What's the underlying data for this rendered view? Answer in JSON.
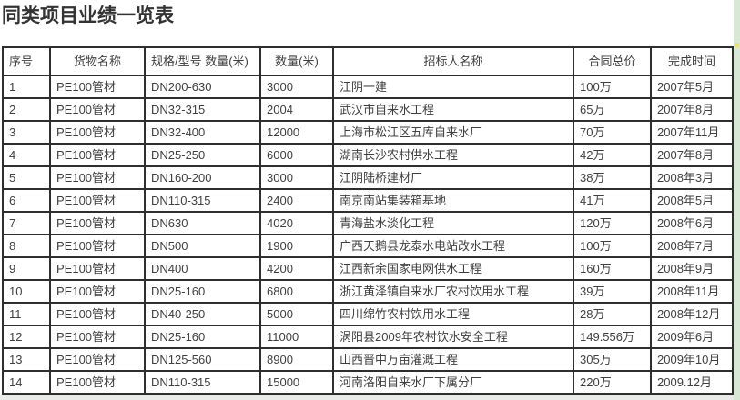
{
  "page": {
    "title": "同类项目业绩一览表"
  },
  "colors": {
    "title_text": "#333333",
    "table_border": "#2e2e2e",
    "cell_text": "#3f3f3f",
    "right_strip_green": "#d7e8d4",
    "right_strip_dot_yellow": "#f0e25a",
    "bottom_gap_gray": "#e9ebe9"
  },
  "table": {
    "headers": [
      "序号",
      "货物名称",
      "规格/型号 数量(米)",
      "数量(米)",
      "招标人名称",
      "合同总价",
      "完成时间"
    ],
    "keys": [
      "no",
      "goods",
      "spec",
      "qty",
      "bidder",
      "price",
      "time"
    ],
    "rows": [
      {
        "no": "1",
        "goods": "PE100管材",
        "spec": "DN200-630",
        "qty": "3000",
        "bidder": "江阴一建",
        "price": "100万",
        "time": "2007年5月"
      },
      {
        "no": "2",
        "goods": "PE100管材",
        "spec": "DN32-315",
        "qty": "2004",
        "bidder": "武汉市自来水工程",
        "price": "65万",
        "time": "2007年8月"
      },
      {
        "no": "3",
        "goods": "PE100管材",
        "spec": "DN32-400",
        "qty": "12000",
        "bidder": "上海市松江区五库自来水厂",
        "price": "70万",
        "time": "2007年11月"
      },
      {
        "no": "4",
        "goods": "PE100管材",
        "spec": "DN25-250",
        "qty": "6000",
        "bidder": "湖南长沙农村供水工程",
        "price": "42万",
        "time": "2007年8月"
      },
      {
        "no": "5",
        "goods": "PE100管材",
        "spec": "DN160-200",
        "qty": "3000",
        "bidder": "江阴陆桥建材厂",
        "price": "38万",
        "time": "2008年3月"
      },
      {
        "no": "6",
        "goods": "PE100管材",
        "spec": "DN110-315",
        "qty": "2400",
        "bidder": "南京南站集装箱基地",
        "price": "41万",
        "time": "2008年5月"
      },
      {
        "no": "7",
        "goods": "PE100管材",
        "spec": "DN630",
        "qty": "4020",
        "bidder": "青海盐水淡化工程",
        "price": "120万",
        "time": "2008年6月"
      },
      {
        "no": "8",
        "goods": "PE100管材",
        "spec": "DN500",
        "qty": "1900",
        "bidder": "广西天鹅县龙泰水电站改水工程",
        "price": "100万",
        "time": "2008年7月"
      },
      {
        "no": "9",
        "goods": "PE100管材",
        "spec": "DN400",
        "qty": "4200",
        "bidder": "江西新余国家电网供水工程",
        "price": "160万",
        "time": "2008年9月"
      },
      {
        "no": "10",
        "goods": "PE100管材",
        "spec": "DN25-160",
        "qty": "6800",
        "bidder": "浙江黄泽镇自来水厂农村饮用水工程",
        "price": "39万",
        "time": "2008年11月"
      },
      {
        "no": "11",
        "goods": "PE100管材",
        "spec": "DN40-250",
        "qty": "5000",
        "bidder": "四川绵竹农村饮用水工程",
        "price": "28万",
        "time": "2008年12月"
      },
      {
        "no": "12",
        "goods": "PE100管材",
        "spec": "DN25-160",
        "qty": "11000",
        "bidder": "涡阳县2009年农村饮水安全工程",
        "price": "149.556万",
        "time": "2009年6月"
      },
      {
        "no": "13",
        "goods": "PE100管材",
        "spec": "DN125-560",
        "qty": "8900",
        "bidder": "山西晋中万亩灌溉工程",
        "price": "305万",
        "time": "2009年10月"
      },
      {
        "no": "14",
        "goods": "PE100管材",
        "spec": "DN110-315",
        "qty": "15000",
        "bidder": "河南洛阳自来水厂下属分厂",
        "price": "220万",
        "time": "2009.12月"
      }
    ]
  }
}
